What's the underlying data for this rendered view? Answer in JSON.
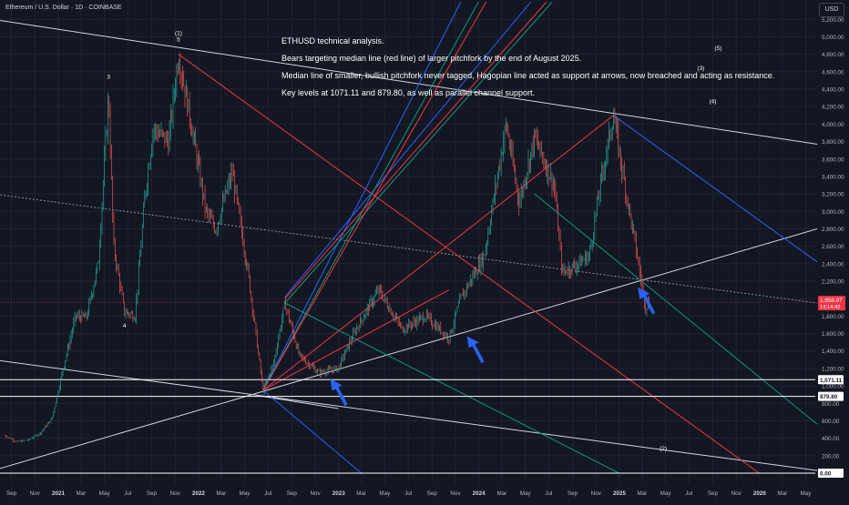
{
  "header": {
    "title": "Ethereum / U.S. Dollar · 1D · COINBASE",
    "currency": "USD"
  },
  "notes": [
    "ETHUSD technical analysis.",
    "Bears targeting median line (red line) of larger pitchfork by the end of August 2025.",
    "Median line of smaller, bullish pitchfork never tagged, Hagopian line acted as support at arrows, now breached and acting as resistance.",
    "Key levels at 1071.11 and 879.80, as well as parallel channel support."
  ],
  "colors": {
    "background": "#131722",
    "grid": "#1f2433",
    "axis_text": "#b2b5be",
    "candle_up": "#26a69a",
    "candle_down": "#ef5350",
    "pitchfork_red": "#f23645",
    "pitchfork_green": "#089981",
    "pitchfork_blue": "#2962ff",
    "trend_white": "#d1d4dc",
    "arrow_blue": "#2962ff",
    "price_label": "#f23645"
  },
  "chart_data": {
    "type": "candlestick",
    "symbol": "ETHUSD",
    "interval": "1D",
    "exchange": "COINBASE",
    "x_ticks": [
      "Sep",
      "Nov",
      "2021",
      "Mar",
      "May",
      "Jul",
      "Sep",
      "Nov",
      "2022",
      "Mar",
      "May",
      "Jul",
      "Sep",
      "Nov",
      "2023",
      "Mar",
      "May",
      "Jul",
      "Sep",
      "Nov",
      "2024",
      "Mar",
      "May",
      "Jul",
      "Sep",
      "Nov",
      "2025",
      "Mar",
      "May",
      "Jul",
      "Sep",
      "Nov",
      "2026",
      "Mar",
      "May"
    ],
    "y_ticks": [
      5200,
      5000,
      4800,
      4600,
      4400,
      4200,
      4000,
      3800,
      3600,
      3400,
      3200,
      3000,
      2800,
      2600,
      2400,
      2200,
      2000,
      1800,
      1600,
      1400,
      1200,
      1000,
      800,
      600,
      400,
      200,
      0
    ],
    "y_tick_labels": [
      "5,200.00",
      "5,000.00",
      "4,800.00",
      "4,600.00",
      "4,400.00",
      "4,200.00",
      "4,000.00",
      "3,800.00",
      "3,600.00",
      "3,400.00",
      "3,200.00",
      "3,000.00",
      "2,800.00",
      "2,600.00",
      "2,400.00",
      "2,200.00",
      "2,000.00",
      "1,800.00",
      "1,600.00",
      "1,400.00",
      "1,200.00",
      "1,000.00",
      "800.00",
      "600.00",
      "400.00",
      "200.00",
      "0.00"
    ],
    "ylim": [
      0,
      5400
    ],
    "price_path": [
      [
        "2020-08-15",
        430
      ],
      [
        "2020-09-15",
        360
      ],
      [
        "2020-10-15",
        380
      ],
      [
        "2020-11-15",
        460
      ],
      [
        "2020-12-15",
        620
      ],
      [
        "2021-01-15",
        1230
      ],
      [
        "2021-02-15",
        1800
      ],
      [
        "2021-03-15",
        1780
      ],
      [
        "2021-04-15",
        2400
      ],
      [
        "2021-05-12",
        4350
      ],
      [
        "2021-05-25",
        2600
      ],
      [
        "2021-06-22",
        1850
      ],
      [
        "2021-07-20",
        1800
      ],
      [
        "2021-08-15",
        3200
      ],
      [
        "2021-09-05",
        3950
      ],
      [
        "2021-10-15",
        3800
      ],
      [
        "2021-11-10",
        4800
      ],
      [
        "2021-12-15",
        3950
      ],
      [
        "2022-01-20",
        3000
      ],
      [
        "2022-02-15",
        2800
      ],
      [
        "2022-03-30",
        3450
      ],
      [
        "2022-05-10",
        2300
      ],
      [
        "2022-06-18",
        950
      ],
      [
        "2022-07-15",
        1250
      ],
      [
        "2022-08-14",
        1950
      ],
      [
        "2022-09-20",
        1350
      ],
      [
        "2022-11-10",
        1150
      ],
      [
        "2022-12-30",
        1200
      ],
      [
        "2023-02-15",
        1650
      ],
      [
        "2023-04-15",
        2100
      ],
      [
        "2023-06-15",
        1650
      ],
      [
        "2023-08-15",
        1800
      ],
      [
        "2023-10-15",
        1550
      ],
      [
        "2023-11-15",
        2000
      ],
      [
        "2024-01-15",
        2500
      ],
      [
        "2024-03-12",
        4000
      ],
      [
        "2024-04-15",
        3100
      ],
      [
        "2024-05-25",
        3850
      ],
      [
        "2024-07-15",
        3300
      ],
      [
        "2024-08-05",
        2300
      ],
      [
        "2024-09-15",
        2400
      ],
      [
        "2024-10-15",
        2500
      ],
      [
        "2024-11-12",
        3300
      ],
      [
        "2024-12-16",
        4100
      ],
      [
        "2025-01-15",
        3300
      ],
      [
        "2025-02-10",
        2650
      ],
      [
        "2025-03-10",
        1900
      ],
      [
        "2025-03-20",
        1990
      ]
    ],
    "level_labels": [
      {
        "text": "1,071.11",
        "value": 1071.11
      },
      {
        "text": "879.80",
        "value": 879.8
      },
      {
        "text": "0.00",
        "value": 0
      }
    ],
    "current_price": {
      "value": 1958.97,
      "text": "1,958.97",
      "sub": "13:14:42"
    },
    "annotations": [
      {
        "text": "(1)",
        "date": "2021-11-10",
        "price": 5020
      },
      {
        "text": "5",
        "date": "2021-11-10",
        "price": 4950
      },
      {
        "text": "3",
        "date": "2021-05-12",
        "price": 4520
      },
      {
        "text": "4",
        "date": "2021-06-22",
        "price": 1670
      },
      {
        "text": "(5)",
        "date": "2025-09-15",
        "price": 4850
      },
      {
        "text": "(3)",
        "date": "2025-08-01",
        "price": 4620
      },
      {
        "text": "(4)",
        "date": "2025-09-01",
        "price": 4240
      },
      {
        "text": "(2)",
        "date": "2025-04-25",
        "price": 260
      }
    ],
    "arrows": [
      {
        "date": "2022-12-10",
        "price": 1080
      },
      {
        "date": "2023-12-01",
        "price": 1570
      },
      {
        "date": "2025-02-18",
        "price": 2130
      }
    ],
    "trend_lines": [
      {
        "color": "white",
        "from": [
          "2020-07-15",
          5200
        ],
        "to": [
          "2026-05-31",
          3770
        ]
      },
      {
        "color": "white",
        "from": [
          "2020-07-15",
          30
        ],
        "to": [
          "2026-05-31",
          2800
        ]
      },
      {
        "color": "white",
        "from": [
          "2020-07-15",
          1300
        ],
        "to": [
          "2026-05-31",
          30
        ]
      },
      {
        "color": "white",
        "from": [
          "2022-06-18",
          880
        ],
        "to": [
          "2022-12-31",
          740
        ]
      },
      {
        "color": "white_dashed",
        "from": [
          "2020-07-15",
          3200
        ],
        "to": [
          "2026-05-31",
          1950
        ]
      },
      {
        "color": "blue",
        "from": [
          "2024-12-16",
          4100
        ],
        "to": [
          "2026-05-31",
          2420
        ]
      },
      {
        "color": "red",
        "from": [
          "2021-11-10",
          4800
        ],
        "to": [
          "2025-12-31",
          0
        ]
      },
      {
        "color": "red",
        "from": [
          "2022-06-18",
          950
        ],
        "to": [
          "2024-12-16",
          4100
        ]
      },
      {
        "color": "green",
        "from": [
          "2024-05-25",
          3200
        ],
        "to": [
          "2026-05-31",
          560
        ]
      },
      {
        "color": "blue",
        "from": [
          "2022-06-18",
          950
        ],
        "to": [
          "2023-03-01",
          0
        ]
      },
      {
        "color": "blue",
        "from": [
          "2022-06-18",
          950
        ],
        "to": [
          "2023-11-15",
          5400
        ]
      },
      {
        "color": "blue",
        "from": [
          "2022-08-14",
          2020
        ],
        "to": [
          "2024-05-15",
          5400
        ]
      },
      {
        "color": "green",
        "from": [
          "2022-06-18",
          950
        ],
        "to": [
          "2023-12-31",
          5400
        ]
      },
      {
        "color": "green",
        "from": [
          "2022-08-14",
          1950
        ],
        "to": [
          "2024-07-10",
          5400
        ]
      },
      {
        "color": "green",
        "from": [
          "2022-08-14",
          1950
        ],
        "to": [
          "2024-12-31",
          0
        ]
      },
      {
        "color": "red",
        "from": [
          "2022-06-18",
          950
        ],
        "to": [
          "2024-01-20",
          5400
        ]
      },
      {
        "color": "red",
        "from": [
          "2022-08-14",
          2000
        ],
        "to": [
          "2024-06-25",
          5400
        ]
      },
      {
        "color": "red",
        "from": [
          "2022-06-18",
          950
        ],
        "to": [
          "2023-10-15",
          2100
        ]
      }
    ]
  }
}
